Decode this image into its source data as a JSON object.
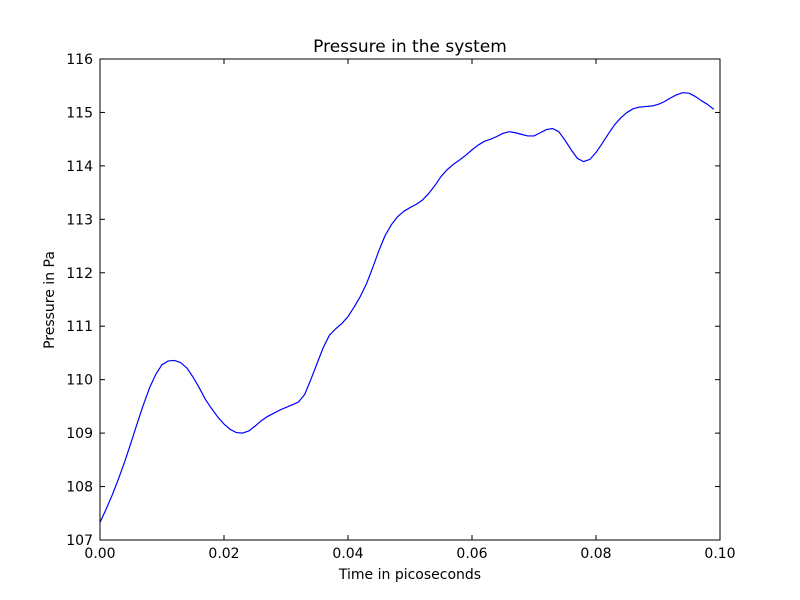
{
  "chart_data": {
    "type": "line",
    "title": "Pressure in the system",
    "xlabel": "Time in picoseconds",
    "ylabel": "Pressure in Pa",
    "xlim": [
      0.0,
      0.1
    ],
    "ylim": [
      107,
      116
    ],
    "xticks": [
      "0.00",
      "0.02",
      "0.04",
      "0.06",
      "0.08",
      "0.10"
    ],
    "yticks": [
      "107",
      "108",
      "109",
      "110",
      "111",
      "112",
      "113",
      "114",
      "115",
      "116"
    ],
    "grid": false,
    "legend": "none",
    "series": [
      {
        "color": "#0000ff",
        "x": [
          0.0,
          0.001,
          0.002,
          0.003,
          0.004,
          0.005,
          0.006,
          0.007,
          0.008,
          0.009,
          0.01,
          0.011,
          0.012,
          0.013,
          0.014,
          0.015,
          0.016,
          0.017,
          0.018,
          0.019,
          0.02,
          0.021,
          0.022,
          0.023,
          0.024,
          0.025,
          0.026,
          0.027,
          0.028,
          0.029,
          0.03,
          0.031,
          0.032,
          0.033,
          0.034,
          0.035,
          0.036,
          0.037,
          0.038,
          0.039,
          0.04,
          0.041,
          0.042,
          0.043,
          0.044,
          0.045,
          0.046,
          0.047,
          0.048,
          0.049,
          0.05,
          0.051,
          0.052,
          0.053,
          0.054,
          0.055,
          0.056,
          0.057,
          0.058,
          0.059,
          0.06,
          0.061,
          0.062,
          0.063,
          0.064,
          0.065,
          0.066,
          0.067,
          0.068,
          0.069,
          0.07,
          0.071,
          0.072,
          0.073,
          0.074,
          0.075,
          0.076,
          0.077,
          0.078,
          0.079,
          0.08,
          0.081,
          0.082,
          0.083,
          0.084,
          0.085,
          0.086,
          0.087,
          0.088,
          0.089,
          0.09,
          0.091,
          0.092,
          0.093,
          0.094,
          0.095,
          0.096,
          0.097,
          0.098,
          0.099
        ],
        "values": [
          107.33,
          107.58,
          107.85,
          108.15,
          108.47,
          108.82,
          109.18,
          109.53,
          109.85,
          110.1,
          110.28,
          110.35,
          110.36,
          110.32,
          110.22,
          110.05,
          109.85,
          109.63,
          109.46,
          109.3,
          109.17,
          109.07,
          109.01,
          109.0,
          109.04,
          109.13,
          109.23,
          109.31,
          109.37,
          109.43,
          109.48,
          109.53,
          109.58,
          109.72,
          110.0,
          110.3,
          110.6,
          110.83,
          110.95,
          111.05,
          111.18,
          111.36,
          111.56,
          111.8,
          112.1,
          112.42,
          112.7,
          112.9,
          113.05,
          113.15,
          113.22,
          113.28,
          113.36,
          113.48,
          113.63,
          113.8,
          113.93,
          114.03,
          114.11,
          114.2,
          114.3,
          114.39,
          114.46,
          114.5,
          114.55,
          114.61,
          114.64,
          114.62,
          114.59,
          114.56,
          114.56,
          114.62,
          114.68,
          114.7,
          114.64,
          114.48,
          114.3,
          114.14,
          114.08,
          114.12,
          114.25,
          114.42,
          114.6,
          114.77,
          114.9,
          115.0,
          115.07,
          115.1,
          115.11,
          115.12,
          115.15,
          115.2,
          115.27,
          115.33,
          115.37,
          115.36,
          115.3,
          115.22,
          115.15,
          115.06
        ]
      }
    ]
  }
}
